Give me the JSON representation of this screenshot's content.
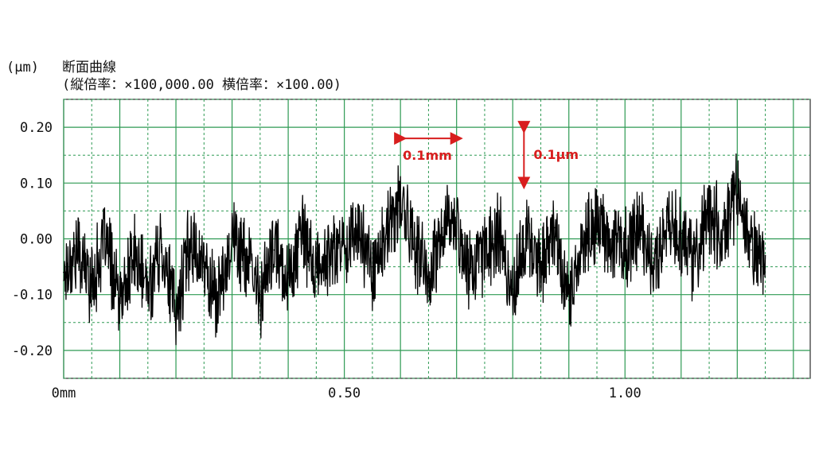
{
  "chart_data": {
    "type": "line",
    "title_unit": "(μm)",
    "title": "断面曲線",
    "subtitle": "(縦倍率：×100,000.00 横倍率：×100.00)",
    "xlabel": "",
    "ylabel": "",
    "xlim": [
      0,
      1.33
    ],
    "ylim": [
      -0.25,
      0.25
    ],
    "x_ticks": [
      {
        "value": 0,
        "label": "0mm"
      },
      {
        "value": 0.5,
        "label": "0.50"
      },
      {
        "value": 1.0,
        "label": "1.00"
      }
    ],
    "y_ticks": [
      {
        "value": 0.2,
        "label": "0.20"
      },
      {
        "value": 0.1,
        "label": "0.10"
      },
      {
        "value": 0.0,
        "label": "0.00"
      },
      {
        "value": -0.1,
        "label": "-0.10"
      },
      {
        "value": -0.2,
        "label": "-0.20"
      }
    ],
    "grid": true,
    "grid_major_x_step": 0.1,
    "grid_major_y_step": 0.1,
    "series": [
      {
        "color": "#000000",
        "x": [
          0.0,
          0.025,
          0.05,
          0.075,
          0.1,
          0.125,
          0.15,
          0.175,
          0.2,
          0.225,
          0.25,
          0.275,
          0.3,
          0.325,
          0.35,
          0.375,
          0.4,
          0.425,
          0.45,
          0.475,
          0.5,
          0.525,
          0.55,
          0.575,
          0.6,
          0.625,
          0.65,
          0.675,
          0.7,
          0.725,
          0.75,
          0.775,
          0.8,
          0.825,
          0.85,
          0.875,
          0.9,
          0.925,
          0.95,
          0.975,
          1.0,
          1.025,
          1.05,
          1.075,
          1.1,
          1.125,
          1.15,
          1.175,
          1.2,
          1.225,
          1.25
        ],
        "y": [
          -0.06,
          -0.02,
          -0.08,
          0.0,
          -0.12,
          -0.03,
          -0.09,
          -0.01,
          -0.14,
          0.0,
          -0.05,
          -0.11,
          0.01,
          -0.04,
          -0.1,
          -0.02,
          -0.07,
          0.01,
          -0.06,
          -0.03,
          -0.01,
          0.02,
          -0.05,
          0.0,
          0.07,
          -0.01,
          -0.08,
          0.02,
          0.03,
          -0.06,
          -0.02,
          0.01,
          -0.09,
          0.0,
          -0.04,
          0.02,
          -0.11,
          -0.01,
          0.03,
          0.0,
          -0.03,
          0.02,
          -0.05,
          0.03,
          0.01,
          -0.04,
          0.05,
          0.0,
          0.08,
          -0.02,
          -0.03
        ]
      }
    ],
    "annotations": [
      {
        "label": "0.1mm",
        "direction": "horizontal",
        "x_from": 0.6,
        "x_to": 0.7,
        "y": 0.18,
        "color": "#d81e1e"
      },
      {
        "label": "0.1μm",
        "direction": "vertical",
        "x": 0.82,
        "y_from": 0.2,
        "y_to": 0.1,
        "color": "#d81e1e"
      }
    ],
    "colors": {
      "grid_major": "#2e9a53",
      "grid_minor": "#2e9a53",
      "axis_box": "#2b2b2b",
      "trace": "#000000",
      "annotation": "#d81e1e"
    }
  }
}
